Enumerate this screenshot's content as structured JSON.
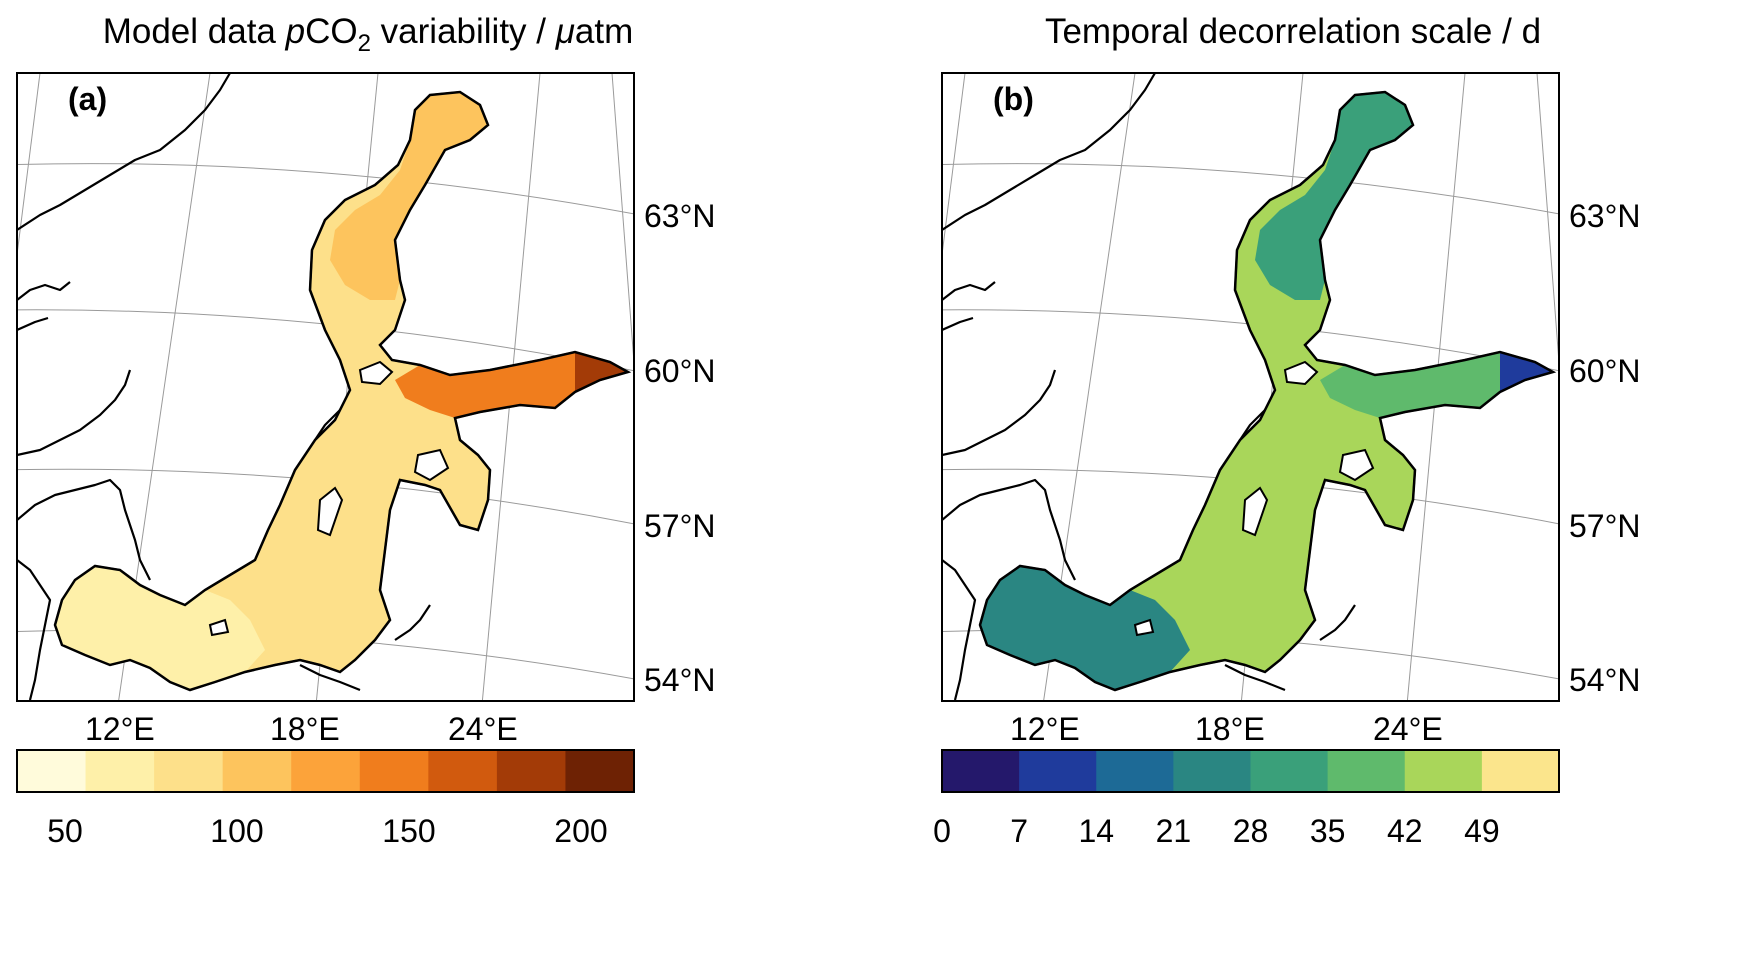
{
  "panels": [
    {
      "title_prefix": "Model data ",
      "title_p": "p",
      "title_co": "CO",
      "title_sub": "2",
      "title_suffix": " variability / ",
      "title_mu": "μ",
      "title_unit": "atm",
      "letter": "(a)",
      "lat_labels": [
        "63°N",
        "60°N",
        "57°N",
        "54°N"
      ],
      "lon_labels": [
        "12°E",
        "18°E",
        "24°E"
      ],
      "colorbar": {
        "ticks": [
          "50",
          "100",
          "150",
          "200"
        ],
        "colors": [
          "#fffbdb",
          "#fef0a9",
          "#fde08a",
          "#fdc45d",
          "#fca33a",
          "#f07d1d",
          "#d15a0e",
          "#a33b07",
          "#6e2204"
        ]
      },
      "sea_colors": {
        "main": "#fde08a",
        "north": "#fdc45d",
        "gulf": "#f07d1d",
        "south": "#fef0a9",
        "edge": "#a33b07"
      }
    },
    {
      "title": "Temporal decorrelation scale / d",
      "letter": "(b)",
      "lat_labels": [
        "63°N",
        "60°N",
        "57°N",
        "54°N"
      ],
      "lon_labels": [
        "12°E",
        "18°E",
        "24°E"
      ],
      "colorbar": {
        "ticks": [
          "0",
          "7",
          "14",
          "21",
          "28",
          "35",
          "42",
          "49"
        ],
        "colors": [
          "#24186b",
          "#1f3b9c",
          "#1d6a96",
          "#2a8682",
          "#3aa07a",
          "#5fba6c",
          "#a9d65a",
          "#fbe58c"
        ]
      },
      "sea_colors": {
        "main": "#a9d65a",
        "north": "#3aa07a",
        "gulf": "#5fba6c",
        "south": "#2a8682",
        "edge": "#1f3b9c"
      }
    }
  ]
}
